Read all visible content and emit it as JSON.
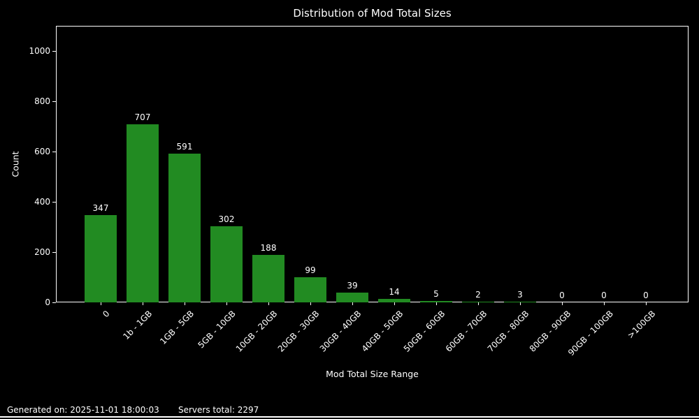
{
  "figure": {
    "footer": {
      "generated": "Generated on: 2025-11-01 18:00:03",
      "servers_total": "Servers total: 2297"
    }
  },
  "chart_data": {
    "type": "bar",
    "title": "Distribution of Mod Total Sizes",
    "xlabel": "Mod Total Size Range",
    "ylabel": "Count",
    "categories": [
      "0",
      "1b - 1GB",
      "1GB - 5GB",
      "5GB - 10GB",
      "10GB - 20GB",
      "20GB - 30GB",
      "30GB - 40GB",
      "40GB - 50GB",
      "50GB - 60GB",
      "60GB - 70GB",
      "70GB - 80GB",
      "80GB - 90GB",
      "90GB - 100GB",
      ">100GB"
    ],
    "values": [
      347,
      707,
      591,
      302,
      188,
      99,
      39,
      14,
      5,
      2,
      3,
      0,
      0,
      0
    ],
    "ylim": [
      0,
      1100
    ],
    "yticks": [
      0,
      200,
      400,
      600,
      800,
      1000
    ],
    "grid": false,
    "legend": "none",
    "bar_color": "#228B22",
    "background_color": "#000000",
    "text_color": "#ffffff"
  }
}
